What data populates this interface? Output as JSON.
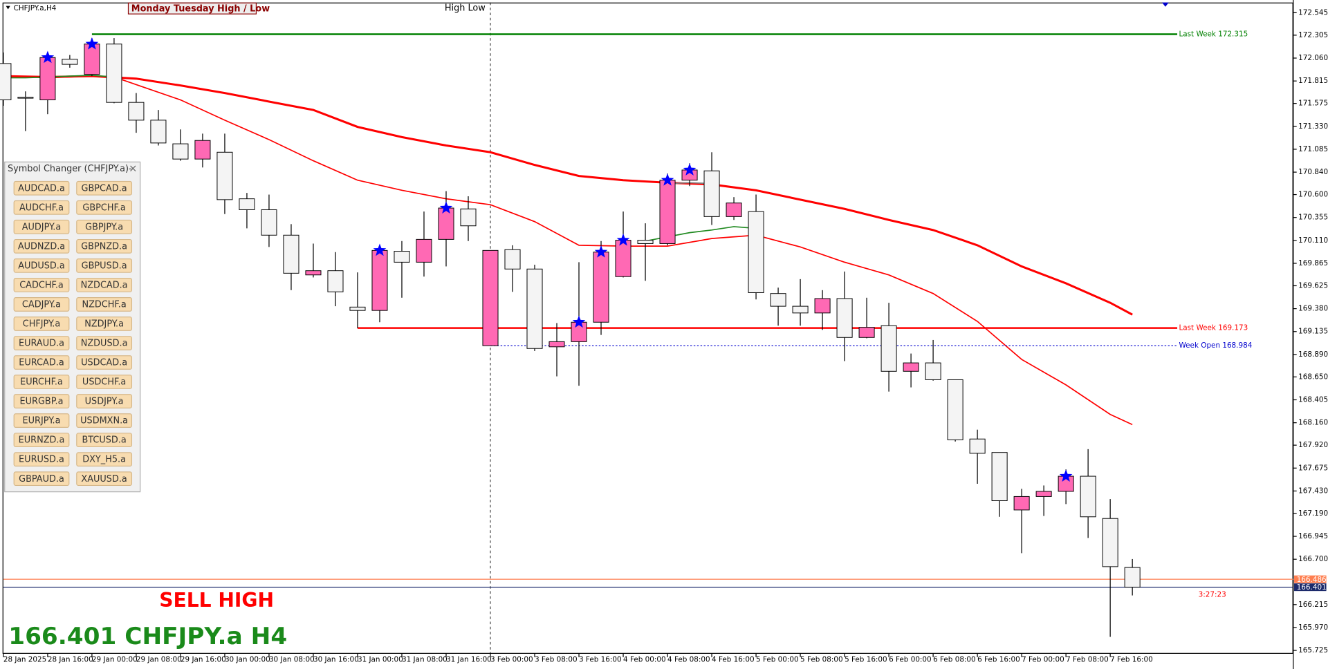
{
  "chart_data": {
    "type": "candlestick",
    "title": "CHFJPY.a,H4",
    "indicator_label": "Monday Tuesday High / Low",
    "indicator_label2": "High Low",
    "signal": "SELL HIGH",
    "footer": "166.401 CHFJPY.a H4",
    "timer": "3:27:23",
    "categories": [
      "28 Jan 2025",
      null,
      "28 Jan 16:00",
      null,
      "29 Jan 00:00",
      null,
      "29 Jan 08:00",
      null,
      "29 Jan 16:00",
      null,
      "30 Jan 00:00",
      null,
      "30 Jan 08:00",
      null,
      "30 Jan 16:00",
      null,
      "31 Jan 00:00",
      null,
      "31 Jan 08:00",
      null,
      "31 Jan 16:00",
      null,
      "3 Feb 00:00",
      null,
      "3 Feb 08:00",
      null,
      "3 Feb 16:00",
      null,
      "4 Feb 00:00",
      null,
      "4 Feb 08:00",
      null,
      "4 Feb 16:00",
      null,
      "5 Feb 00:00",
      null,
      "5 Feb 08:00",
      null,
      "5 Feb 16:00",
      null,
      "6 Feb 00:00",
      null,
      "6 Feb 08:00",
      null,
      "6 Feb 16:00",
      null,
      "7 Feb 00:00",
      null,
      "7 Feb 08:00",
      null,
      "7 Feb 16:00",
      null
    ],
    "open": [
      172.002,
      171.641,
      171.613,
      172.048,
      171.885,
      172.21,
      171.586,
      171.396,
      171.143,
      170.98,
      171.053,
      170.555,
      170.438,
      170.166,
      169.741,
      169.786,
      169.397,
      169.361,
      169.994,
      169.877,
      170.121,
      170.447,
      168.984,
      170.012,
      169.804,
      168.972,
      169.027,
      169.235,
      169.723,
      170.112,
      170.076,
      170.754,
      170.854,
      170.365,
      170.419,
      169.542,
      169.406,
      169.334,
      169.488,
      169.072,
      169.198,
      168.71,
      168.8,
      168.62,
      167.986,
      167.842,
      167.227,
      167.371,
      167.426,
      167.588,
      167.136,
      166.612
    ],
    "high": [
      172.12,
      171.704,
      172.12,
      172.093,
      172.274,
      172.274,
      171.686,
      171.505,
      171.297,
      171.252,
      171.252,
      170.618,
      170.6,
      170.284,
      170.076,
      169.985,
      169.768,
      170.058,
      170.103,
      170.419,
      170.637,
      170.582,
      170.003,
      170.058,
      169.85,
      169.226,
      169.877,
      170.103,
      170.419,
      170.293,
      170.826,
      170.935,
      171.053,
      170.573,
      170.6,
      169.605,
      169.696,
      169.578,
      169.777,
      169.497,
      169.443,
      168.9,
      169.045,
      168.62,
      168.086,
      167.842,
      167.453,
      167.489,
      167.661,
      167.878,
      167.344,
      166.702
    ],
    "low": [
      171.55,
      171.279,
      171.46,
      171.957,
      171.867,
      171.577,
      171.261,
      171.125,
      170.962,
      170.89,
      170.392,
      170.239,
      170.04,
      169.578,
      169.714,
      169.406,
      169.171,
      169.235,
      169.497,
      169.723,
      169.832,
      170.103,
      168.984,
      169.56,
      168.927,
      168.656,
      168.556,
      169.099,
      169.714,
      169.678,
      170.058,
      170.691,
      170.275,
      170.329,
      169.479,
      169.198,
      169.198,
      169.153,
      168.819,
      169.063,
      168.493,
      168.538,
      168.61,
      167.959,
      167.507,
      167.154,
      166.765,
      167.163,
      167.29,
      166.928,
      165.87,
      166.313
    ],
    "close": [
      171.613,
      171.631,
      172.066,
      171.993,
      172.21,
      171.586,
      171.396,
      171.152,
      170.98,
      171.179,
      170.546,
      170.438,
      170.166,
      169.759,
      169.786,
      169.56,
      169.361,
      170.003,
      169.877,
      170.121,
      170.456,
      170.266,
      170.003,
      169.804,
      168.954,
      169.027,
      169.235,
      169.985,
      170.112,
      170.076,
      170.754,
      170.863,
      170.365,
      170.51,
      169.551,
      169.406,
      169.334,
      169.488,
      169.072,
      169.18,
      168.71,
      168.8,
      168.62,
      167.977,
      167.833,
      167.326,
      167.371,
      167.426,
      167.588,
      167.154,
      166.621,
      166.401
    ],
    "up_color": "#ff69b4",
    "down_color": "#f4f4f4",
    "stars": [
      2,
      4,
      17,
      20,
      26,
      27,
      28,
      30,
      31,
      48
    ],
    "star_color": "#0000ff",
    "overlays": [
      {
        "color": "#ff0000",
        "width": 2.5,
        "x": [
          0,
          2,
          4,
          6,
          8,
          10,
          12,
          14,
          16,
          18,
          20,
          22,
          24,
          26,
          28,
          30,
          32,
          34,
          36,
          38,
          40,
          42,
          44,
          46,
          48,
          50,
          51
        ],
        "values": [
          171.867,
          171.858,
          171.867,
          171.84,
          171.767,
          171.686,
          171.595,
          171.505,
          171.324,
          171.215,
          171.125,
          171.053,
          170.917,
          170.799,
          170.754,
          170.727,
          170.709,
          170.646,
          170.546,
          170.447,
          170.329,
          170.221,
          170.058,
          169.832,
          169.651,
          169.443,
          169.316
        ]
      },
      {
        "color": "#ff0000",
        "width": 1.4,
        "x": [
          0,
          2,
          4,
          5,
          6,
          8,
          10,
          12,
          14,
          16,
          18,
          20,
          22,
          24,
          26,
          28,
          30,
          32,
          34,
          36,
          38,
          40,
          42,
          44,
          46,
          48,
          50,
          51
        ],
        "values": [
          171.867,
          171.849,
          171.867,
          171.858,
          171.776,
          171.613,
          171.396,
          171.188,
          170.962,
          170.754,
          170.646,
          170.555,
          170.492,
          170.311,
          170.058,
          170.049,
          170.049,
          170.13,
          170.166,
          170.04,
          169.877,
          169.741,
          169.542,
          169.244,
          168.837,
          168.565,
          168.249,
          168.14
        ]
      },
      {
        "color": "#228b22",
        "width": 1.4,
        "x": [
          0,
          1,
          2,
          3,
          4,
          5
        ],
        "values": [
          171.849,
          171.849,
          171.858,
          171.867,
          171.876,
          171.858
        ]
      },
      {
        "color": "#228b22",
        "width": 1.4,
        "x": [
          29,
          30,
          31,
          32,
          33,
          34
        ],
        "values": [
          170.103,
          170.148,
          170.193,
          170.221,
          170.257,
          170.239
        ]
      },
      {
        "color": "#808080",
        "width": 1.4,
        "x": [
          30,
          31,
          32
        ],
        "values": [
          170.718,
          170.727,
          170.718
        ]
      }
    ],
    "separator": 22,
    "levels": [
      {
        "label": "Last Week 172.315",
        "value": 172.315,
        "color": "#008000",
        "from": 4
      },
      {
        "label": "Last Week 169.173",
        "value": 169.173,
        "color": "#ff0000",
        "from": 16
      },
      {
        "label": "Week Open 168.984",
        "value": 168.984,
        "color": "#0000cd",
        "from": 22,
        "dashed": true
      }
    ],
    "price_lines": [
      {
        "value": 166.486,
        "color": "#ff7f50"
      },
      {
        "value": 166.401,
        "color": "#1c2a6b"
      }
    ],
    "ylim": [
      165.689,
      172.654
    ],
    "yticks": [
      172.545,
      172.305,
      {
        "value": 172.06,
        "label": "172.060"
      },
      171.815,
      171.575,
      {
        "value": 171.33,
        "label": "171.330"
      },
      171.085,
      {
        "value": 170.84,
        "label": "170.840"
      },
      {
        "value": 170.6,
        "label": "170.600"
      },
      170.355,
      {
        "value": 170.11,
        "label": "170.110"
      },
      169.865,
      169.625,
      {
        "value": 169.38,
        "label": "169.380"
      },
      169.135,
      {
        "value": 168.89,
        "label": "168.890"
      },
      {
        "value": 168.65,
        "label": "168.650"
      },
      168.405,
      {
        "value": 168.16,
        "label": "168.160"
      },
      {
        "value": 167.92,
        "label": "167.920"
      },
      167.675,
      {
        "value": 167.43,
        "label": "167.430"
      },
      {
        "value": 167.19,
        "label": "167.190"
      },
      166.945,
      {
        "value": 166.7,
        "label": "166.700"
      },
      166.215,
      {
        "value": 165.97,
        "label": "165.970"
      },
      165.725
    ]
  },
  "symbol_changer": {
    "title": "Symbol Changer (CHFJPY.a)-",
    "close": "×",
    "columns": [
      [
        "AUDCAD.a",
        "AUDCHF.a",
        "AUDJPY.a",
        "AUDNZD.a",
        "AUDUSD.a",
        "CADCHF.a",
        "CADJPY.a",
        "CHFJPY.a",
        "EURAUD.a",
        "EURCAD.a",
        "EURCHF.a",
        "EURGBP.a",
        "EURJPY.a",
        "EURNZD.a",
        "EURUSD.a",
        "GBPAUD.a"
      ],
      [
        "GBPCAD.a",
        "GBPCHF.a",
        "GBPJPY.a",
        "GBPNZD.a",
        "GBPUSD.a",
        "NZDCAD.a",
        "NZDCHF.a",
        "NZDJPY.a",
        "NZDUSD.a",
        "USDCAD.a",
        "USDCHF.a",
        "USDJPY.a",
        "USDMXN.a",
        "BTCUSD.a",
        "DXY_H5.a",
        "XAUUSD.a"
      ]
    ]
  }
}
